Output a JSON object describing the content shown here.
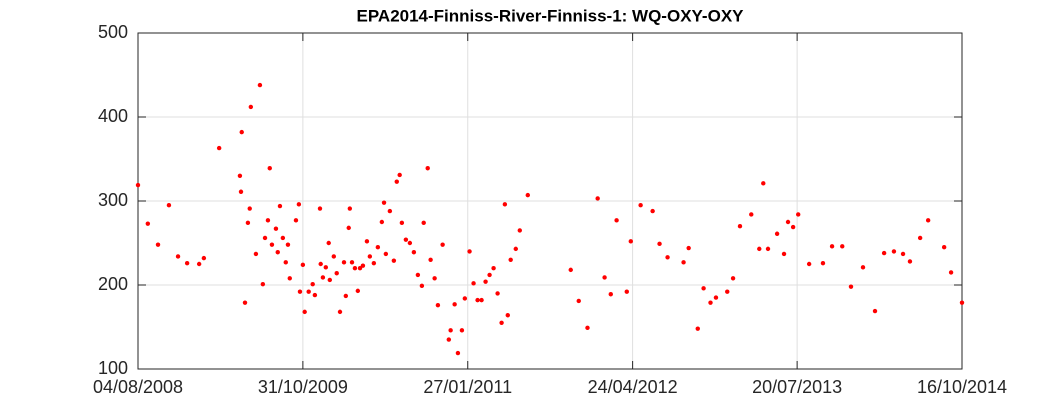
{
  "chart_data": {
    "type": "scatter",
    "title": "EPA2014-Finniss-River-Finniss-1: WQ-OXY-OXY",
    "grid": true,
    "xlim": [
      "2008-08-04",
      "2014-10-16"
    ],
    "xticks": [
      {
        "value": "2008-08-04",
        "label": "04/08/2008"
      },
      {
        "value": "2009-10-31",
        "label": "31/10/2009"
      },
      {
        "value": "2011-01-27",
        "label": "27/01/2011"
      },
      {
        "value": "2012-04-24",
        "label": "24/04/2012"
      },
      {
        "value": "2013-07-20",
        "label": "20/07/2013"
      },
      {
        "value": "2014-10-16",
        "label": "16/10/2014"
      }
    ],
    "ylim": [
      100,
      500
    ],
    "yticks": [
      100,
      200,
      300,
      400,
      500
    ],
    "series": [
      {
        "color": "#ff0000",
        "x": [
          "2008-08-04",
          "2008-08-31",
          "2008-09-28",
          "2008-10-28",
          "2008-11-22",
          "2008-12-17",
          "2009-01-19",
          "2009-02-01",
          "2009-03-15",
          "2009-05-11",
          "2009-05-14",
          "2009-05-16",
          "2009-05-25",
          "2009-06-02",
          "2009-06-07",
          "2009-06-10",
          "2009-06-24",
          "2009-07-05",
          "2009-07-13",
          "2009-07-19",
          "2009-07-27",
          "2009-08-01",
          "2009-08-07",
          "2009-08-18",
          "2009-08-23",
          "2009-08-29",
          "2009-09-06",
          "2009-09-14",
          "2009-09-20",
          "2009-09-25",
          "2009-10-12",
          "2009-10-20",
          "2009-10-23",
          "2009-10-31",
          "2009-11-05",
          "2009-11-16",
          "2009-11-27",
          "2009-12-03",
          "2009-12-17",
          "2009-12-19",
          "2009-12-25",
          "2010-01-02",
          "2010-01-10",
          "2010-01-13",
          "2010-01-24",
          "2010-02-01",
          "2010-02-10",
          "2010-02-21",
          "2010-02-26",
          "2010-03-06",
          "2010-03-09",
          "2010-03-15",
          "2010-03-23",
          "2010-03-31",
          "2010-04-06",
          "2010-04-14",
          "2010-04-25",
          "2010-05-03",
          "2010-05-14",
          "2010-05-25",
          "2010-06-05",
          "2010-06-11",
          "2010-06-16",
          "2010-06-27",
          "2010-07-08",
          "2010-07-16",
          "2010-07-24",
          "2010-07-30",
          "2010-08-10",
          "2010-08-21",
          "2010-09-01",
          "2010-09-12",
          "2010-09-23",
          "2010-09-28",
          "2010-10-09",
          "2010-10-17",
          "2010-10-28",
          "2010-11-06",
          "2010-11-19",
          "2010-12-06",
          "2010-12-11",
          "2010-12-22",
          "2010-12-31",
          "2011-01-11",
          "2011-01-19",
          "2011-02-01",
          "2011-02-12",
          "2011-02-23",
          "2011-03-06",
          "2011-03-17",
          "2011-03-28",
          "2011-04-08",
          "2011-04-19",
          "2011-04-30",
          "2011-05-09",
          "2011-05-17",
          "2011-05-25",
          "2011-06-08",
          "2011-06-19",
          "2011-07-11",
          "2011-11-06",
          "2011-11-28",
          "2011-12-22",
          "2012-01-19",
          "2012-02-07",
          "2012-02-24",
          "2012-03-11",
          "2012-04-08",
          "2012-04-19",
          "2012-05-16",
          "2012-06-18",
          "2012-07-07",
          "2012-07-29",
          "2012-09-11",
          "2012-09-25",
          "2012-10-20",
          "2012-11-05",
          "2012-11-24",
          "2012-12-09",
          "2013-01-09",
          "2013-01-25",
          "2013-02-13",
          "2013-03-16",
          "2013-04-07",
          "2013-04-18",
          "2013-05-01",
          "2013-05-26",
          "2013-06-14",
          "2013-06-25",
          "2013-07-09",
          "2013-07-23",
          "2013-08-22",
          "2013-09-29",
          "2013-10-24",
          "2013-11-21",
          "2013-12-15",
          "2014-01-17",
          "2014-02-19",
          "2014-03-16",
          "2014-04-12",
          "2014-05-07",
          "2014-05-26",
          "2014-06-23",
          "2014-07-15",
          "2014-08-28",
          "2014-09-16",
          "2014-10-16"
        ],
        "values": [
          319,
          273,
          248,
          295,
          234,
          226,
          225,
          232,
          363,
          330,
          311,
          382,
          179,
          274,
          291,
          412,
          237,
          438,
          201,
          256,
          277,
          339,
          248,
          267,
          239,
          294,
          256,
          227,
          248,
          208,
          277,
          296,
          192,
          224,
          168,
          192,
          201,
          188,
          291,
          225,
          209,
          221,
          250,
          206,
          234,
          214,
          168,
          227,
          187,
          268,
          291,
          227,
          220,
          193,
          220,
          223,
          252,
          234,
          226,
          245,
          275,
          298,
          237,
          288,
          229,
          323,
          331,
          274,
          254,
          250,
          239,
          212,
          199,
          274,
          339,
          230,
          208,
          176,
          248,
          135,
          146,
          177,
          119,
          146,
          184,
          240,
          202,
          182,
          182,
          204,
          212,
          220,
          190,
          155,
          296,
          164,
          230,
          243,
          265,
          307,
          218,
          181,
          149,
          303,
          209,
          189,
          277,
          192,
          252,
          295,
          288,
          249,
          233,
          227,
          244,
          148,
          196,
          179,
          185,
          192,
          208,
          270,
          284,
          243,
          321,
          243,
          261,
          237,
          275,
          269,
          284,
          225,
          226,
          246,
          246,
          198,
          221,
          169,
          238,
          240,
          237,
          228,
          256,
          277,
          245,
          215,
          179
        ]
      }
    ]
  }
}
